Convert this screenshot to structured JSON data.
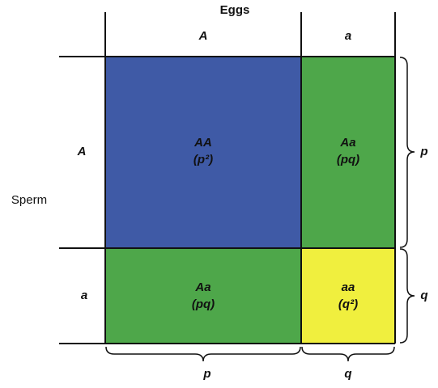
{
  "header": {
    "title": "Eggs",
    "side_label": "Sperm"
  },
  "columns": [
    "A",
    "a"
  ],
  "rows": [
    "A",
    "a"
  ],
  "cells": [
    [
      {
        "genotype": "AA",
        "frequency": "(p²)"
      },
      {
        "genotype": "Aa",
        "frequency": "(pq)"
      }
    ],
    [
      {
        "genotype": "Aa",
        "frequency": "(pq)"
      },
      {
        "genotype": "aa",
        "frequency": "(q²)"
      }
    ]
  ],
  "bottom_braces": [
    "p",
    "q"
  ],
  "right_braces": [
    "p",
    "q"
  ]
}
